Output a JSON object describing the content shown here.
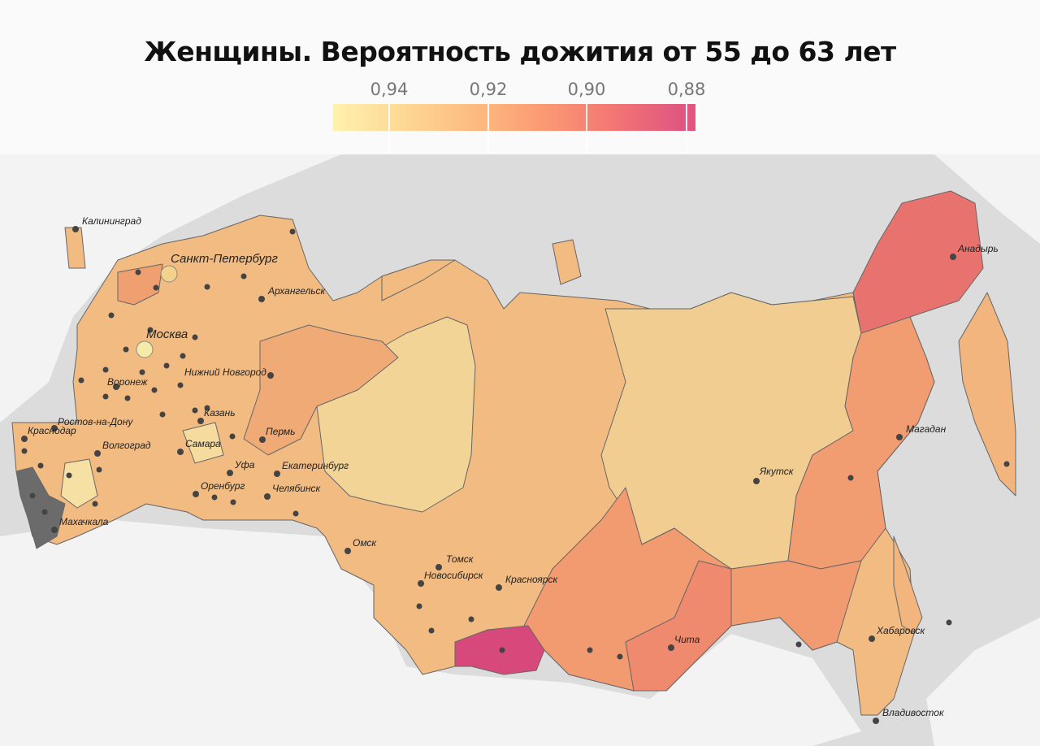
{
  "title": "Женщины. Вероятность дожития от 55 до 63 лет",
  "legend": {
    "ticks": [
      "0,94",
      "0,92",
      "0,90",
      "0,88"
    ],
    "colors": {
      "low": "#fff1ad",
      "mid": "#fb9a73",
      "high": "#e05680",
      "no_data": "#6b6b6b"
    }
  },
  "cities": [
    "Калининград",
    "Санкт-Петербург",
    "Москва",
    "Архангельск",
    "Нижний Новгород",
    "Воронеж",
    "Казань",
    "Ростов-на-Дону",
    "Краснодар",
    "Волгоград",
    "Самара",
    "Пермь",
    "Уфа",
    "Екатеринбург",
    "Оренбург",
    "Челябинск",
    "Махачкала",
    "Омск",
    "Томск",
    "Новосибирск",
    "Красноярск",
    "Якутск",
    "Магадан",
    "Анадырь",
    "Чита",
    "Хабаровск",
    "Владивосток"
  ]
}
